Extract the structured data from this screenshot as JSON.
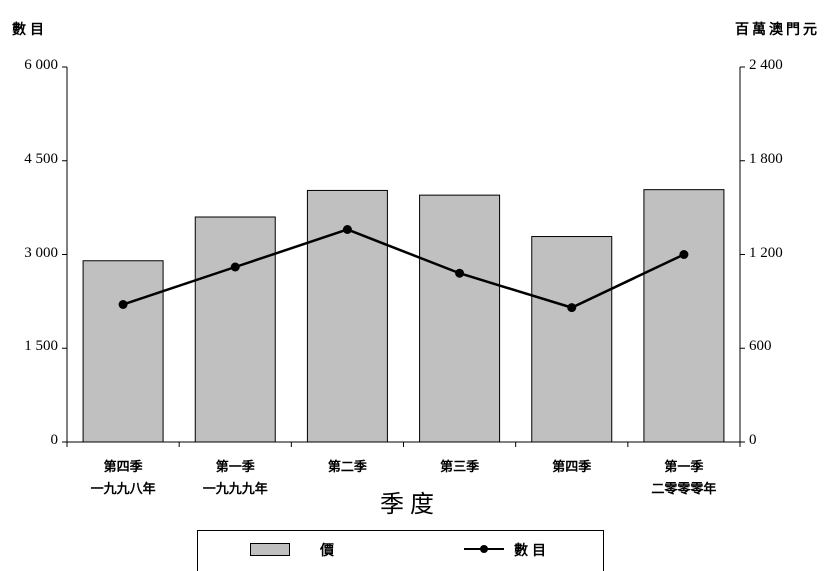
{
  "chart_data": {
    "type": "bar+line",
    "xlabel": "季度",
    "y_left_label": "數目",
    "y_right_label": "百萬澳門元",
    "categories": [
      [
        "第四季",
        "一九九八年"
      ],
      [
        "第一季",
        "一九九九年"
      ],
      [
        "第二季",
        ""
      ],
      [
        "第三季",
        ""
      ],
      [
        "第四季",
        ""
      ],
      [
        "第一季",
        "二零零零年"
      ]
    ],
    "y_left": {
      "min": 0,
      "max": 6000,
      "ticks": [
        "6 000",
        "4 500",
        "3 000",
        "1 500",
        "0"
      ]
    },
    "y_right": {
      "min": 0,
      "max": 2400,
      "ticks": [
        "2 400",
        "1 800",
        "1 200",
        "600",
        "0"
      ]
    },
    "series": [
      {
        "name": "價",
        "type": "bar",
        "axis": "right",
        "values": [
          1160,
          1440,
          1610,
          1580,
          1315,
          1615
        ]
      },
      {
        "name": "數目",
        "type": "line",
        "axis": "left",
        "values": [
          2200,
          2800,
          3400,
          2700,
          2150,
          3000
        ]
      }
    ],
    "colors": {
      "bar_fill": "#c0c0c0",
      "bar_stroke": "#000000",
      "line": "#000000"
    },
    "legend": "bottom",
    "grid": false
  }
}
